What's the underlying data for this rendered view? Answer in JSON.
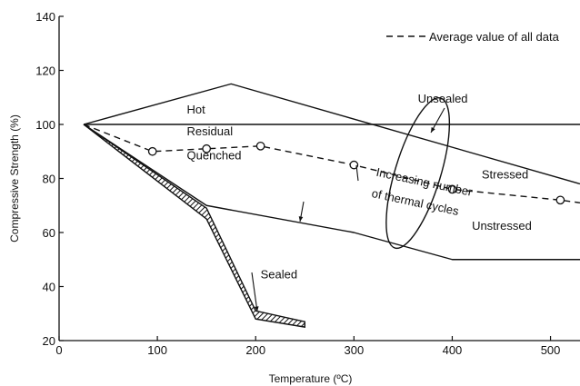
{
  "chart_data": {
    "type": "line",
    "title": "",
    "xlabel": "Temperature (ºC)",
    "ylabel": "Compressive Strength (%)",
    "xlim": [
      0,
      530
    ],
    "ylim": [
      20,
      140
    ],
    "x_ticks": [
      0,
      100,
      200,
      300,
      400,
      500
    ],
    "y_ticks": [
      20,
      40,
      60,
      80,
      100,
      120,
      140
    ],
    "grid": false,
    "legend": {
      "position": "top-right",
      "entries": [
        {
          "label": "Average value of all data",
          "style": "dashed"
        }
      ]
    },
    "series": [
      {
        "name": "Hot",
        "style": "solid",
        "x": [
          25,
          175,
          530
        ],
        "y": [
          100,
          115,
          78
        ]
      },
      {
        "name": "Residual",
        "style": "solid",
        "x": [
          25,
          530
        ],
        "y": [
          100,
          100
        ]
      },
      {
        "name": "Unstressed",
        "style": "solid",
        "x": [
          25,
          150,
          300,
          400,
          530
        ],
        "y": [
          100,
          70,
          60,
          50,
          50
        ]
      },
      {
        "name": "Average value of all data",
        "style": "dashed",
        "markers": "open-circle",
        "x": [
          25,
          95,
          150,
          205,
          300,
          400,
          510,
          530
        ],
        "y": [
          100,
          90,
          91,
          92,
          85,
          76,
          72,
          71
        ],
        "marker_x": [
          95,
          150,
          205,
          300,
          400,
          510
        ],
        "marker_y": [
          90,
          91,
          92,
          85,
          76,
          72
        ]
      },
      {
        "name": "Sealed",
        "style": "hatched-band",
        "x": [
          25,
          150,
          200,
          250
        ],
        "y_upper": [
          100,
          69,
          31,
          27
        ],
        "y_lower": [
          100,
          65,
          28,
          25
        ]
      }
    ],
    "annotations": {
      "hot": {
        "text": "Hot",
        "x": 130,
        "y": 104
      },
      "residual": {
        "text": "Residual",
        "x": 130,
        "y": 96
      },
      "quenched": {
        "text": "Quenched",
        "x": 130,
        "y": 87
      },
      "increasing_1": {
        "text": "Increasing number",
        "x": 322,
        "y": 81
      },
      "increasing_2": {
        "text": "of thermal cycles",
        "x": 322,
        "y": 73
      },
      "unsealed": {
        "text": "Unsealed",
        "x": 365,
        "y": 108
      },
      "stressed": {
        "text": "Stressed",
        "x": 430,
        "y": 80
      },
      "unstressed": {
        "text": "Unstressed",
        "x": 420,
        "y": 61
      },
      "sealed": {
        "text": "Sealed",
        "x": 205,
        "y": 43
      }
    },
    "ellipse": {
      "cx": 365,
      "cy": 82,
      "rx": 25,
      "ry": 29,
      "rotation_deg": 17
    }
  }
}
